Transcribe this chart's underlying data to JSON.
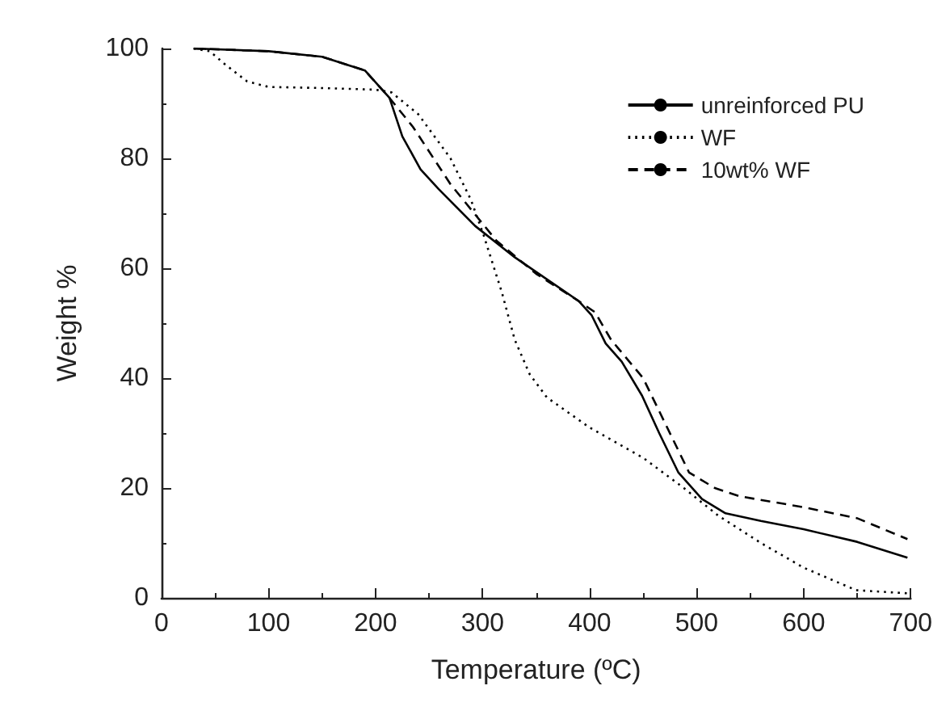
{
  "chart_data": {
    "type": "line",
    "xlabel": "Temperature (ºC)",
    "ylabel": "Weight %",
    "xlim": [
      0,
      700
    ],
    "xticks": [
      0,
      100,
      200,
      300,
      400,
      500,
      600,
      700
    ],
    "ylim": [
      0,
      100
    ],
    "yticks": [
      0,
      20,
      40,
      60,
      80,
      100
    ],
    "grid": false,
    "legend": "top right",
    "marker": "none",
    "series": [
      {
        "name": "unreinforced PU",
        "color": "#000000",
        "line_style": "solid",
        "x": [
          30,
          100,
          150,
          190,
          213,
          225,
          242,
          259,
          293,
          330,
          360,
          390,
          402,
          415,
          430,
          449,
          465,
          483,
          505,
          527,
          560,
          600,
          650,
          697
        ],
        "values": [
          100,
          99.5,
          98.5,
          96,
          91,
          84,
          78,
          74.4,
          67.7,
          62,
          58,
          54,
          51.4,
          46.3,
          43,
          36.8,
          30,
          22.8,
          18,
          15.4,
          14,
          12.5,
          10.2,
          7.3
        ]
      },
      {
        "name": "WF",
        "color": "#000000",
        "line_style": "dotted",
        "x": [
          30,
          45,
          60,
          80,
          100,
          150,
          200,
          215,
          240,
          270,
          289,
          301,
          318,
          330,
          344,
          360,
          400,
          450,
          488,
          520,
          560,
          600,
          649,
          700
        ],
        "values": [
          100,
          99.5,
          97,
          94,
          93,
          92.8,
          92.5,
          92,
          88,
          80,
          72.5,
          66,
          55.6,
          47,
          40.7,
          36.5,
          31,
          25.5,
          20,
          15,
          10,
          5.5,
          1.4,
          0.8
        ]
      },
      {
        "name": "10wt% WF",
        "color": "#000000",
        "line_style": "dashed",
        "x": [
          30,
          100,
          150,
          190,
          213,
          235,
          270,
          313,
          350,
          390,
          405,
          420,
          450,
          470,
          493,
          517,
          540,
          600,
          650,
          697
        ],
        "values": [
          100,
          99.5,
          98.5,
          96,
          91,
          85.7,
          75.3,
          65,
          59,
          54,
          52,
          47,
          40,
          32,
          22.8,
          20,
          18.5,
          16.5,
          14.5,
          10.7
        ]
      }
    ]
  }
}
